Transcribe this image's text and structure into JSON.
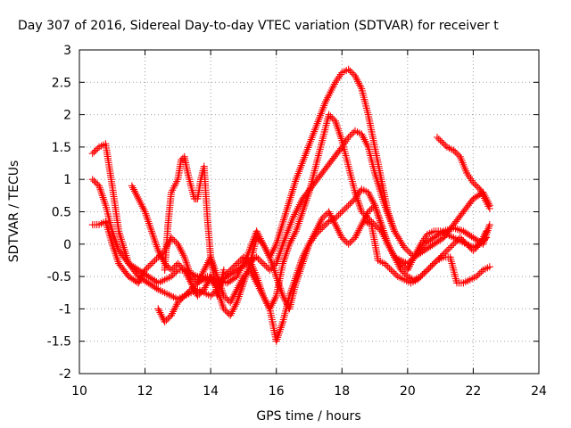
{
  "chart_data": {
    "type": "scatter",
    "title": "Day 307 of 2016, Sidereal Day-to-day VTEC variation (SDTVAR) for receiver t",
    "xlabel": "GPS time / hours",
    "ylabel": "SDTVAR / TECUs",
    "xlim": [
      10,
      24
    ],
    "ylim": [
      -2,
      3
    ],
    "xticks": [
      10,
      12,
      14,
      16,
      18,
      20,
      22,
      24
    ],
    "yticks": [
      -2,
      -1.5,
      -1,
      -0.5,
      0,
      0.5,
      1,
      1.5,
      2,
      2.5,
      3
    ],
    "xtick_labels": [
      "10",
      "12",
      "14",
      "16",
      "18",
      "20",
      "22",
      "24"
    ],
    "ytick_labels": [
      "-2",
      "-1.5",
      "-1",
      "-0.5",
      "0",
      "0.5",
      "1",
      "1.5",
      "2",
      "2.5",
      "3"
    ],
    "grid": true,
    "marker": "+",
    "color": "#ff0000",
    "series": [
      {
        "x": [
          10.4,
          10.6,
          10.8,
          11.0,
          11.2,
          11.5,
          11.8,
          12.1,
          12.4,
          12.6,
          12.8,
          13.0,
          13.2,
          13.4,
          13.6,
          13.9,
          14.2,
          14.5,
          14.8,
          15.1,
          15.4,
          15.6,
          15.8,
          16.0,
          16.2,
          16.5,
          16.8,
          17.1,
          17.4,
          17.7,
          18.0,
          18.2,
          18.4,
          18.6,
          18.8,
          19.0,
          19.3,
          19.6,
          19.9,
          20.2,
          20.5,
          20.8,
          21.1,
          21.4,
          21.7,
          22.0,
          22.3,
          22.5
        ],
        "y": [
          1.0,
          0.9,
          0.6,
          0.2,
          -0.1,
          -0.3,
          -0.4,
          -0.5,
          -0.6,
          -0.55,
          -0.5,
          -0.4,
          -0.4,
          -0.45,
          -0.5,
          -0.55,
          -0.6,
          -0.5,
          -0.4,
          -0.3,
          -0.2,
          -0.3,
          -0.4,
          -0.3,
          0.0,
          0.4,
          0.7,
          0.9,
          1.1,
          1.3,
          1.5,
          1.65,
          1.75,
          1.7,
          1.5,
          1.1,
          0.6,
          0.2,
          -0.05,
          -0.2,
          -0.1,
          0.0,
          0.1,
          0.3,
          0.5,
          0.7,
          0.8,
          0.6
        ]
      },
      {
        "x": [
          10.4,
          10.6,
          10.8,
          11.0,
          11.2,
          11.5,
          11.8,
          12.1,
          12.4,
          12.6,
          12.8,
          13.0,
          13.2,
          13.4,
          13.6,
          13.9,
          14.2,
          14.5,
          14.8,
          15.1,
          15.4,
          15.6,
          15.8,
          16.0,
          16.3,
          16.6,
          16.9,
          17.2,
          17.5,
          17.8,
          18.0,
          18.2,
          18.4,
          18.6,
          18.8,
          19.0,
          19.2,
          19.4,
          19.6
        ],
        "y": [
          1.4,
          1.5,
          1.55,
          0.9,
          0.2,
          -0.3,
          -0.5,
          -0.6,
          -0.7,
          -0.75,
          -0.8,
          -0.85,
          -0.8,
          -0.7,
          -0.6,
          -0.5,
          -0.55,
          -0.6,
          -0.5,
          -0.2,
          0.2,
          0.0,
          -0.2,
          0.0,
          0.5,
          1.0,
          1.4,
          1.8,
          2.2,
          2.5,
          2.65,
          2.7,
          2.6,
          2.4,
          2.0,
          1.5,
          1.0,
          0.5,
          0.2
        ]
      },
      {
        "x": [
          10.4,
          10.6,
          10.8,
          11.0,
          11.2,
          11.5,
          11.8,
          12.0,
          12.2,
          12.4,
          12.6,
          12.8,
          13.0,
          13.2,
          13.4,
          13.6,
          13.8,
          14.0,
          14.2,
          14.4,
          14.6,
          14.8,
          15.0,
          15.2,
          15.4,
          15.6,
          15.8,
          16.0,
          16.2,
          16.4,
          16.6,
          16.8,
          17.0,
          17.2,
          17.4,
          17.6,
          17.8,
          18.0,
          18.2,
          18.4,
          18.6,
          18.8,
          19.0,
          19.2,
          19.4,
          19.6,
          19.8,
          20.0,
          20.2,
          20.5,
          20.8,
          21.1,
          21.4,
          21.7,
          22.0,
          22.3,
          22.5
        ],
        "y": [
          0.3,
          0.3,
          0.35,
          0.0,
          -0.3,
          -0.5,
          -0.6,
          -0.4,
          -0.3,
          -0.2,
          -0.1,
          0.1,
          0.0,
          -0.2,
          -0.5,
          -0.6,
          -0.4,
          -0.2,
          -0.5,
          -0.8,
          -0.9,
          -0.7,
          -0.5,
          -0.4,
          -0.6,
          -0.8,
          -1.0,
          -0.8,
          -0.3,
          0.0,
          0.2,
          0.5,
          0.8,
          1.2,
          1.6,
          2.0,
          1.9,
          1.6,
          1.2,
          0.8,
          0.5,
          0.4,
          0.3,
          0.2,
          0.0,
          -0.2,
          -0.3,
          -0.4,
          -0.2,
          0.0,
          0.1,
          0.2,
          0.25,
          0.2,
          0.1,
          0.0,
          0.3
        ]
      },
      {
        "x": [
          11.6,
          11.8,
          12.0,
          12.2,
          12.4,
          12.6,
          12.8,
          13.0,
          13.2,
          13.4,
          13.6,
          13.8,
          14.0,
          14.2,
          14.4,
          14.6,
          14.8,
          15.0,
          15.2,
          15.4,
          15.6,
          15.8,
          16.0,
          16.2,
          16.4,
          16.6,
          16.8,
          17.0,
          17.2,
          17.4,
          17.6,
          17.8,
          18.0,
          18.2,
          18.4,
          18.6,
          18.8,
          19.0,
          19.2,
          19.4,
          19.6,
          19.8,
          20.0,
          20.2,
          20.4,
          20.6,
          20.8,
          21.0,
          21.2,
          21.4,
          21.6,
          21.8,
          22.0,
          22.2,
          22.4
        ],
        "y": [
          0.9,
          0.7,
          0.5,
          0.2,
          -0.1,
          -0.3,
          -0.4,
          -0.3,
          -0.4,
          -0.6,
          -0.8,
          -0.7,
          -0.5,
          -0.7,
          -1.0,
          -1.1,
          -0.9,
          -0.6,
          -0.3,
          0.1,
          0.0,
          -0.2,
          -0.5,
          -0.8,
          -1.0,
          -0.6,
          -0.3,
          0.0,
          0.2,
          0.4,
          0.5,
          0.3,
          0.1,
          0.0,
          0.1,
          0.3,
          0.5,
          0.6,
          0.3,
          0.0,
          -0.2,
          -0.25,
          -0.3,
          -0.2,
          0.0,
          0.15,
          0.2,
          0.2,
          0.15,
          0.1,
          0.05,
          0.0,
          -0.05,
          0.0,
          0.2
        ]
      },
      {
        "x": [
          12.4,
          12.6,
          12.8,
          13.0,
          13.2,
          13.4,
          13.6,
          13.8,
          14.0,
          14.2,
          14.4,
          14.6,
          14.8,
          15.0,
          15.2,
          15.4,
          15.6,
          15.8,
          16.0,
          16.2,
          16.4,
          16.6,
          16.8,
          17.0,
          17.2,
          17.4,
          17.6,
          17.8,
          18.0,
          18.2,
          18.4,
          18.6,
          18.8,
          19.0,
          19.2,
          19.4,
          19.6,
          19.8,
          20.0,
          20.2,
          20.4,
          20.6,
          20.8,
          21.0,
          21.2,
          21.4,
          21.6,
          21.8,
          22.0,
          22.2,
          22.4
        ],
        "y": [
          -1.0,
          -1.2,
          -1.1,
          -0.9,
          -0.8,
          -0.75,
          -0.7,
          -0.75,
          -0.8,
          -0.7,
          -0.5,
          -0.4,
          -0.3,
          -0.2,
          -0.25,
          -0.5,
          -0.8,
          -1.0,
          -1.5,
          -1.2,
          -0.8,
          -0.5,
          -0.2,
          0.0,
          0.15,
          0.25,
          0.35,
          0.4,
          0.5,
          0.6,
          0.7,
          0.85,
          0.8,
          0.6,
          0.3,
          0.0,
          -0.2,
          -0.4,
          -0.5,
          -0.55,
          -0.5,
          -0.4,
          -0.3,
          -0.2,
          -0.1,
          0.0,
          0.1,
          0.0,
          -0.1,
          0.0,
          0.1
        ]
      },
      {
        "x": [
          12.6,
          12.7,
          12.8,
          12.9,
          13.0,
          13.1,
          13.2,
          13.3,
          13.4,
          13.5,
          13.6,
          13.7,
          13.8,
          13.9,
          14.0,
          14.1,
          14.2,
          14.3,
          14.4
        ],
        "y": [
          -0.4,
          0.3,
          0.8,
          0.9,
          1.0,
          1.3,
          1.35,
          1.1,
          0.9,
          0.7,
          0.7,
          1.0,
          1.2,
          0.4,
          -0.2,
          -0.5,
          -0.8,
          -0.6,
          -0.4
        ]
      },
      {
        "x": [
          20.9,
          21.0,
          21.2,
          21.4,
          21.6,
          21.8,
          22.0,
          22.2,
          22.4,
          22.5
        ],
        "y": [
          1.65,
          1.6,
          1.5,
          1.45,
          1.35,
          1.1,
          0.95,
          0.85,
          0.65,
          0.55
        ]
      },
      {
        "x": [
          18.7,
          18.9,
          19.1,
          19.3,
          19.5,
          19.7,
          19.9,
          20.1,
          20.3,
          20.5,
          20.7,
          20.9,
          21.1,
          21.3,
          21.5,
          21.7,
          21.9,
          22.1,
          22.3,
          22.5
        ],
        "y": [
          0.35,
          0.3,
          -0.25,
          -0.3,
          -0.4,
          -0.5,
          -0.55,
          -0.6,
          -0.55,
          -0.45,
          -0.35,
          -0.25,
          -0.2,
          -0.2,
          -0.6,
          -0.6,
          -0.55,
          -0.5,
          -0.4,
          -0.35
        ]
      }
    ]
  }
}
